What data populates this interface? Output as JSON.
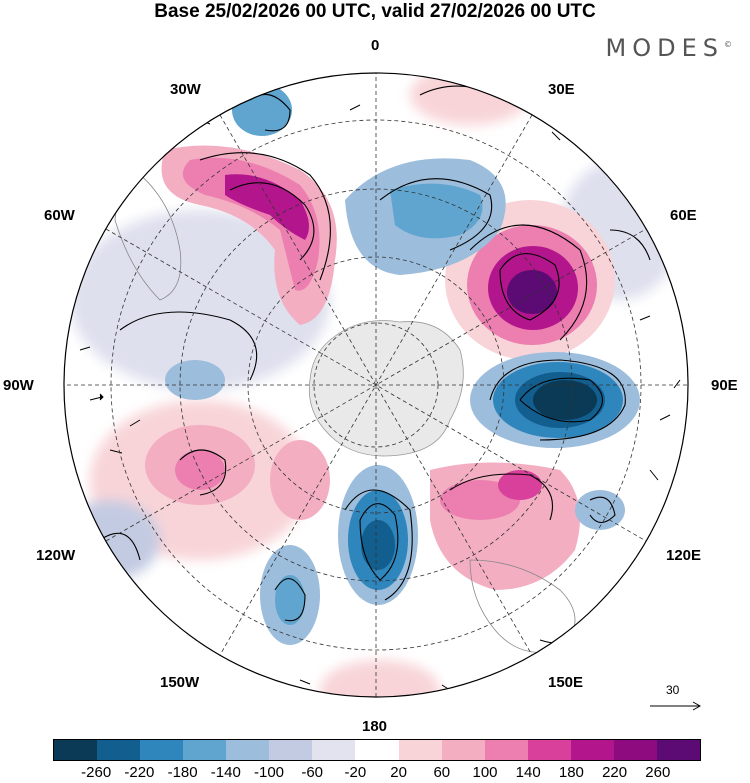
{
  "title": "Base 25/02/2026 00 UTC, valid 27/02/2026 00 UTC",
  "brand": "MODES",
  "brand_mark": "©",
  "longitude_labels": {
    "lon_0": "0",
    "lon_30e": "30E",
    "lon_60e": "60E",
    "lon_90e": "90E",
    "lon_120e": "120E",
    "lon_150e": "150E",
    "lon_180": "180",
    "lon_150w": "150W",
    "lon_120w": "120W",
    "lon_90w": "90W",
    "lon_60w": "60W",
    "lon_30w": "30W"
  },
  "vector_reference": "30",
  "colorbar": {
    "colors": [
      "#0b3a57",
      "#125f8f",
      "#2f86bd",
      "#5fa5cf",
      "#9cbddb",
      "#c3cbe2",
      "#e3e3ef",
      "#ffffff",
      "#f8d4d8",
      "#f3aec2",
      "#ec7fb0",
      "#d8409b",
      "#b3168c",
      "#8d0b7f",
      "#5b0b73"
    ],
    "ticks": [
      "-260",
      "-220",
      "-180",
      "-140",
      "-100",
      "-60",
      "-20",
      "20",
      "60",
      "100",
      "140",
      "180",
      "220",
      "260"
    ]
  }
}
